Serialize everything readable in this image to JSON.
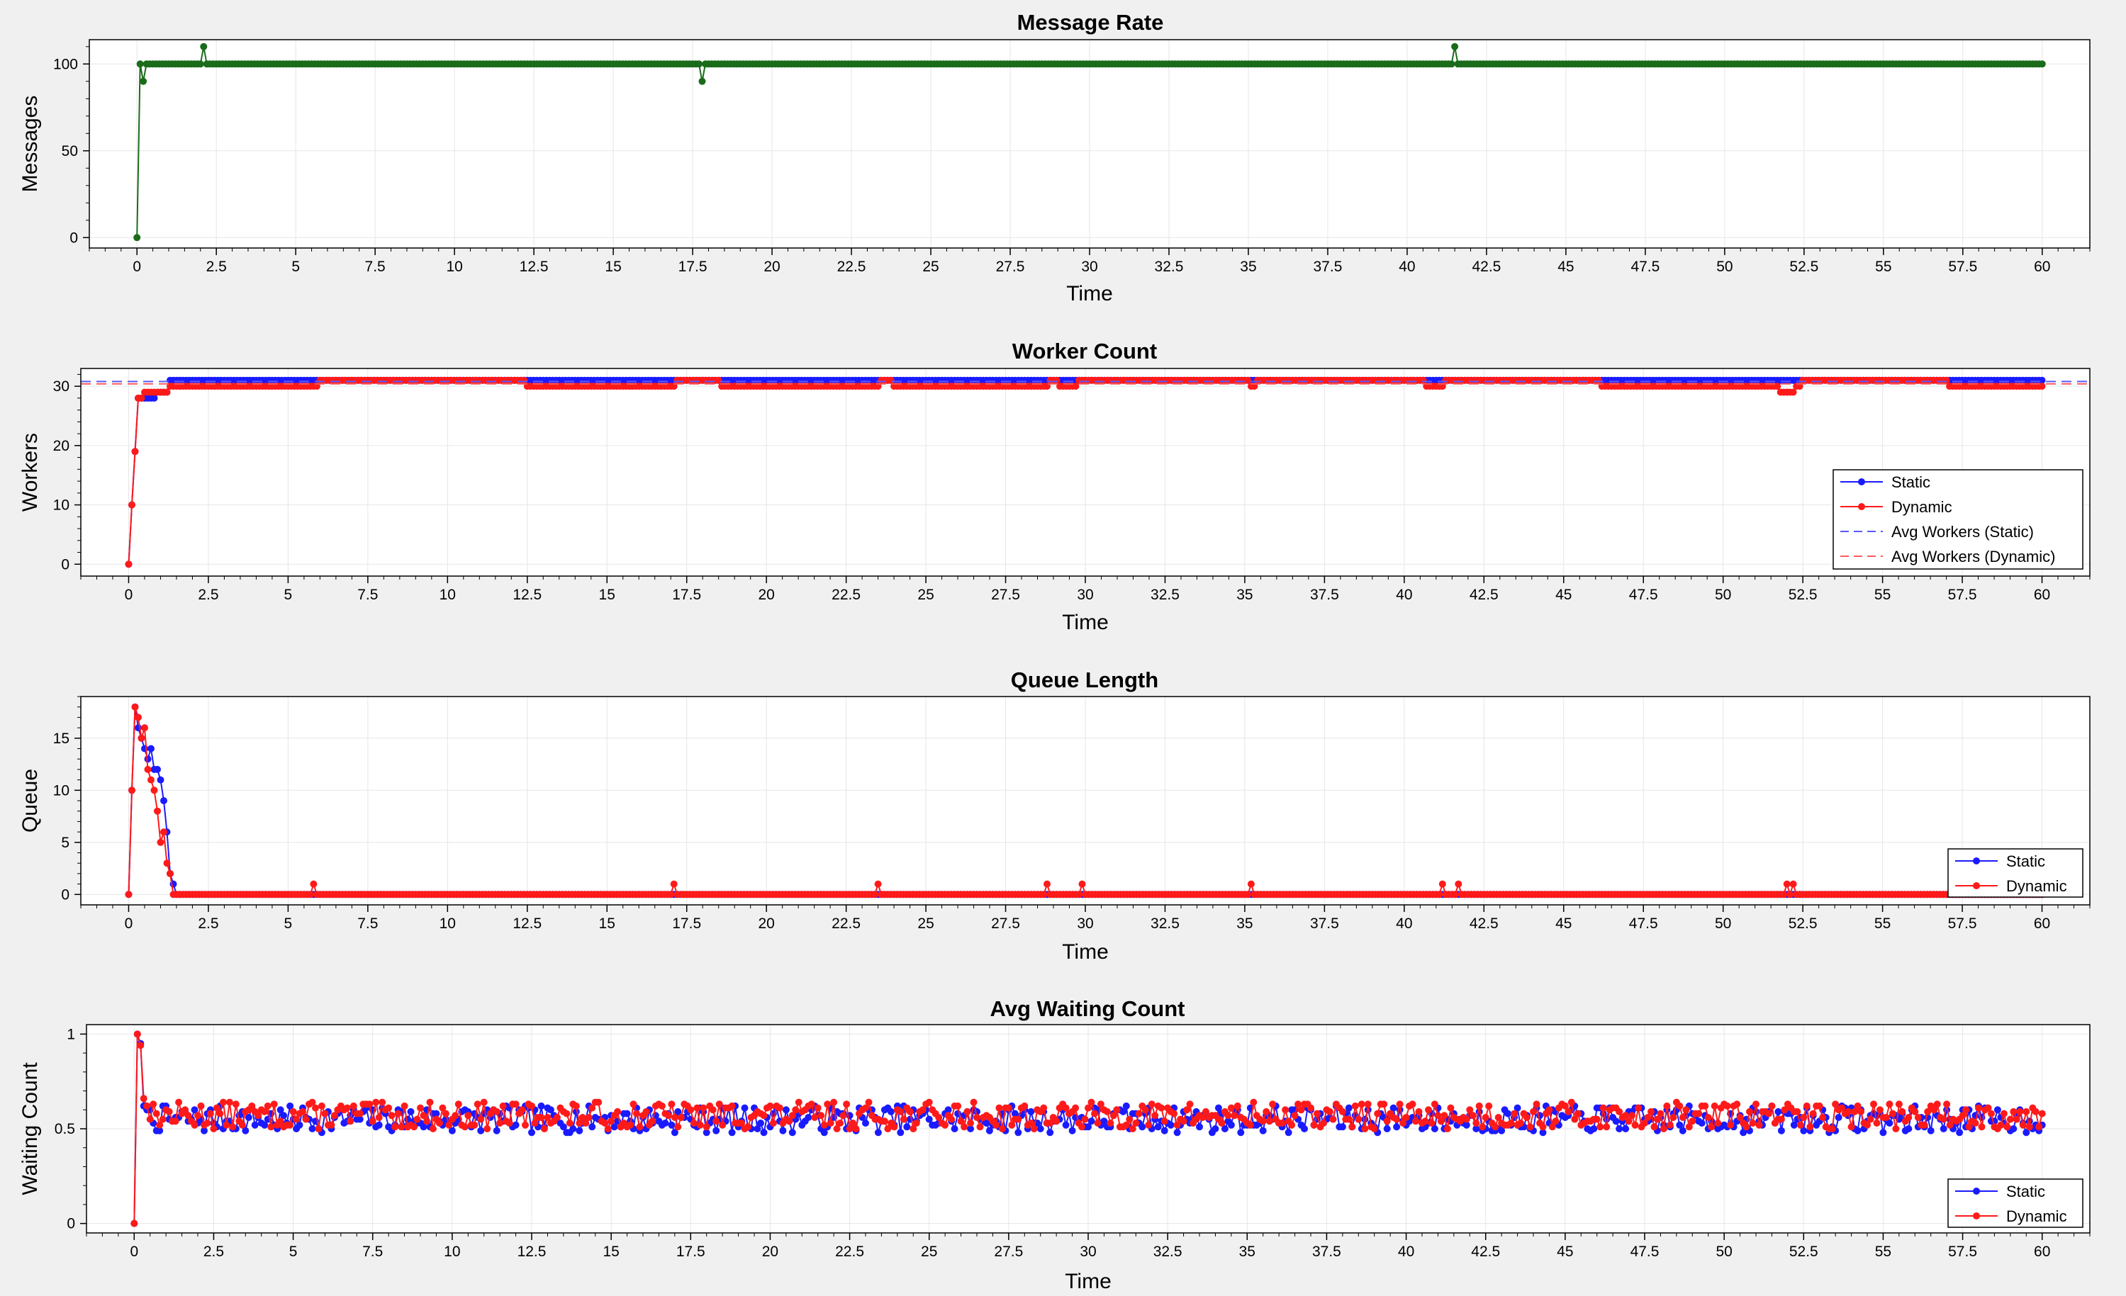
{
  "chart_data": [
    {
      "type": "line",
      "title": "Message Rate",
      "xlabel": "Time",
      "ylabel": "Messages",
      "xlim": [
        -1.5,
        61.5
      ],
      "ylim": [
        -6,
        114
      ],
      "xticks": [
        0,
        2.5,
        5,
        7.5,
        10,
        12.5,
        15,
        17.5,
        20,
        22.5,
        25,
        27.5,
        30,
        32.5,
        35,
        37.5,
        40,
        42.5,
        45,
        47.5,
        50,
        52.5,
        55,
        57.5,
        60
      ],
      "xtick_labels": [
        "0",
        "2.5",
        "5",
        "7.5",
        "10",
        "12.5",
        "15",
        "17.5",
        "20",
        "22.5",
        "25",
        "27.5",
        "30",
        "32.5",
        "35",
        "37.5",
        "40",
        "42.5",
        "45",
        "47.5",
        "50",
        "52.5",
        "55",
        "57.5",
        "60"
      ],
      "yticks": [
        0,
        50,
        100
      ],
      "ytick_labels": [
        "0",
        "50",
        "100"
      ],
      "grid": true,
      "legend": "none",
      "series": [
        {
          "color": "#1a6b1a",
          "x_start": 0,
          "x_end": 60,
          "step": 0.1,
          "base": 100,
          "overrides": {
            "0": 0,
            "1": 100,
            "2": 90,
            "21": 110,
            "178": 90,
            "415": 110
          }
        }
      ]
    },
    {
      "type": "line",
      "title": "Worker Count",
      "xlabel": "Time",
      "ylabel": "Workers",
      "xlim": [
        -1.5,
        61.5
      ],
      "ylim": [
        -2,
        33
      ],
      "xticks": [
        0,
        2.5,
        5,
        7.5,
        10,
        12.5,
        15,
        17.5,
        20,
        22.5,
        25,
        27.5,
        30,
        32.5,
        35,
        37.5,
        40,
        42.5,
        45,
        47.5,
        50,
        52.5,
        55,
        57.5,
        60
      ],
      "xtick_labels": [
        "0",
        "2.5",
        "5",
        "7.5",
        "10",
        "12.5",
        "15",
        "17.5",
        "20",
        "22.5",
        "25",
        "27.5",
        "30",
        "32.5",
        "35",
        "37.5",
        "40",
        "42.5",
        "45",
        "47.5",
        "50",
        "52.5",
        "55",
        "57.5",
        "60"
      ],
      "yticks": [
        0,
        10,
        20,
        30
      ],
      "ytick_labels": [
        "0",
        "10",
        "20",
        "30"
      ],
      "grid": true,
      "legend": "bottom-right",
      "series": [
        {
          "name": "Static",
          "color": "#1a1aff",
          "x_start": 0,
          "x_end": 60,
          "step": 0.1,
          "base": 31,
          "overrides": {
            "0": 0,
            "1": 10,
            "2": 19,
            "3": 28,
            "4": 28,
            "5": 28,
            "6": 28,
            "7": 28,
            "8": 28,
            "9": 29,
            "10": 29,
            "11": 29,
            "12": 29
          }
        },
        {
          "name": "Dynamic",
          "color": "#ff1a1a",
          "x_start": 0,
          "x_end": 60,
          "step": 0.1,
          "base": 31,
          "overrides": {
            "0": 0,
            "1": 10,
            "2": 19,
            "3": 28,
            "4": 28,
            "5": 29,
            "6": 29,
            "7": 29,
            "8": 29,
            "9": 29,
            "10": 29,
            "11": 29,
            "12": 29
          },
          "ranges": [
            [
              13,
              59,
              30
            ],
            [
              125,
              171,
              30
            ],
            [
              186,
              235,
              30
            ],
            [
              240,
              288,
              30
            ],
            [
              292,
              297,
              30
            ],
            [
              352,
              353,
              30
            ],
            [
              407,
              412,
              30
            ],
            [
              462,
              520,
              30
            ],
            [
              518,
              522,
              29
            ],
            [
              523,
              524,
              30
            ],
            [
              571,
              600,
              30
            ]
          ]
        },
        {
          "name": "Avg Workers (Static)",
          "color": "#5a5aff",
          "style": "dashed",
          "value": 30.8
        },
        {
          "name": "Avg Workers (Dynamic)",
          "color": "#ff5a5a",
          "style": "dashed",
          "value": 30.4
        }
      ]
    },
    {
      "type": "line",
      "title": "Queue Length",
      "xlabel": "Time",
      "ylabel": "Queue",
      "xlim": [
        -1.5,
        61.5
      ],
      "ylim": [
        -1,
        19
      ],
      "xticks": [
        0,
        2.5,
        5,
        7.5,
        10,
        12.5,
        15,
        17.5,
        20,
        22.5,
        25,
        27.5,
        30,
        32.5,
        35,
        37.5,
        40,
        42.5,
        45,
        47.5,
        50,
        52.5,
        55,
        57.5,
        60
      ],
      "xtick_labels": [
        "0",
        "2.5",
        "5",
        "7.5",
        "10",
        "12.5",
        "15",
        "17.5",
        "20",
        "22.5",
        "25",
        "27.5",
        "30",
        "32.5",
        "35",
        "37.5",
        "40",
        "42.5",
        "45",
        "47.5",
        "50",
        "52.5",
        "55",
        "57.5",
        "60"
      ],
      "yticks": [
        0,
        5,
        10,
        15
      ],
      "ytick_labels": [
        "0",
        "5",
        "10",
        "15"
      ],
      "grid": true,
      "legend": "bottom-right",
      "series": [
        {
          "name": "Static",
          "color": "#1a1aff",
          "x_start": 0,
          "x_end": 60,
          "step": 0.1,
          "base": 0,
          "overrides": {
            "0": 0,
            "1": 10,
            "2": 18,
            "3": 16,
            "4": 15,
            "5": 14,
            "6": 13,
            "7": 14,
            "8": 12,
            "9": 12,
            "10": 11,
            "11": 9,
            "12": 6,
            "13": 2,
            "14": 1
          }
        },
        {
          "name": "Dynamic",
          "color": "#ff1a1a",
          "x_start": 0,
          "x_end": 60,
          "step": 0.1,
          "base": 0,
          "overrides": {
            "0": 0,
            "1": 10,
            "2": 18,
            "3": 17,
            "4": 15,
            "5": 16,
            "6": 12,
            "7": 11,
            "8": 10,
            "9": 8,
            "10": 5,
            "11": 6,
            "12": 3,
            "13": 2,
            "14": 0,
            "58": 1,
            "171": 1,
            "235": 1,
            "288": 1,
            "299": 1,
            "352": 1,
            "412": 1,
            "417": 1,
            "520": 1,
            "522": 1
          }
        }
      ]
    },
    {
      "type": "line",
      "title": "Avg Waiting Count",
      "xlabel": "Time",
      "ylabel": "Waiting Count",
      "xlim": [
        -1.5,
        61.5
      ],
      "ylim": [
        -0.05,
        1.05
      ],
      "xticks": [
        0,
        2.5,
        5,
        7.5,
        10,
        12.5,
        15,
        17.5,
        20,
        22.5,
        25,
        27.5,
        30,
        32.5,
        35,
        37.5,
        40,
        42.5,
        45,
        47.5,
        50,
        52.5,
        55,
        57.5,
        60
      ],
      "xtick_labels": [
        "0",
        "2.5",
        "5",
        "7.5",
        "10",
        "12.5",
        "15",
        "17.5",
        "20",
        "22.5",
        "25",
        "27.5",
        "30",
        "32.5",
        "35",
        "37.5",
        "40",
        "42.5",
        "45",
        "47.5",
        "50",
        "52.5",
        "55",
        "57.5",
        "60"
      ],
      "yticks": [
        0,
        0.5,
        1
      ],
      "ytick_labels": [
        "0",
        "0.5",
        "1"
      ],
      "grid": true,
      "legend": "bottom-right",
      "series": [
        {
          "name": "Static",
          "color": "#1a1aff",
          "x_start": 0,
          "x_end": 60,
          "step": 0.1,
          "base": 0.55,
          "noise": 0.07,
          "seed": 7,
          "overrides": {
            "0": 0,
            "1": 1,
            "2": 0.95,
            "3": 0.62,
            "4": 0.6
          }
        },
        {
          "name": "Dynamic",
          "color": "#ff1a1a",
          "x_start": 0,
          "x_end": 60,
          "step": 0.1,
          "base": 0.57,
          "noise": 0.07,
          "seed": 13,
          "overrides": {
            "0": 0,
            "1": 1,
            "2": 0.94,
            "3": 0.66,
            "4": 0.62
          }
        }
      ]
    }
  ]
}
